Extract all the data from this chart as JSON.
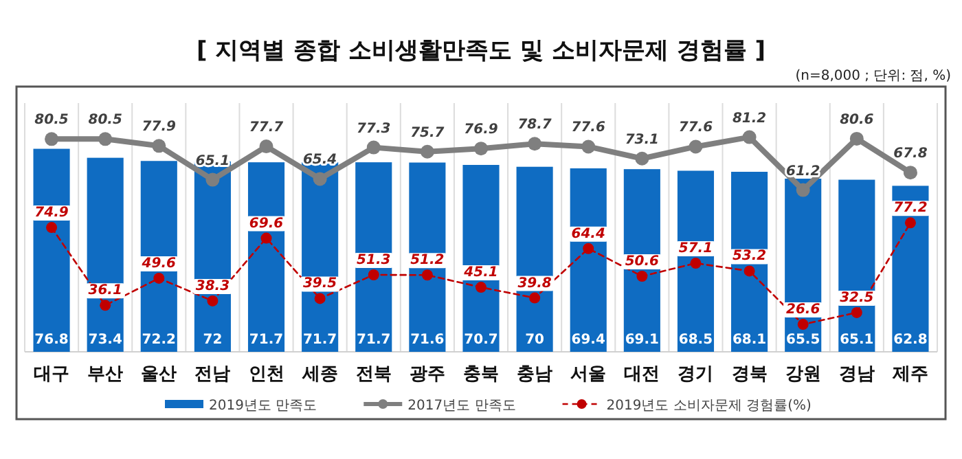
{
  "chart_data": {
    "type": "bar",
    "title": "[ 지역별 종합 소비생활만족도 및 소비자문제 경험률 ]",
    "subtitle": "(n=8,000 ; 단위: 점, %)",
    "categories": [
      "대구",
      "부산",
      "울산",
      "전남",
      "인천",
      "세종",
      "전북",
      "광주",
      "충북",
      "충남",
      "서울",
      "대전",
      "경기",
      "경북",
      "강원",
      "경남",
      "제주"
    ],
    "series": [
      {
        "name": "2019년도 만족도",
        "color": "#0f6cc2",
        "values": [
          76.8,
          73.4,
          72.2,
          72.0,
          71.7,
          71.7,
          71.7,
          71.6,
          70.7,
          70.0,
          69.4,
          69.1,
          68.5,
          68.1,
          65.5,
          65.1,
          62.8
        ]
      },
      {
        "name": "2017년도 만족도",
        "type": "line",
        "color": "#7f7f7f",
        "marker": "circle",
        "line_style": "solid",
        "values": [
          80.5,
          80.5,
          77.9,
          65.1,
          77.7,
          65.4,
          77.3,
          75.7,
          76.9,
          78.7,
          77.6,
          73.1,
          77.6,
          81.2,
          61.2,
          80.6,
          67.8
        ]
      },
      {
        "name": "2019년도 소비자문제 경험률(%)",
        "type": "line",
        "axis": "y2",
        "color": "#c00000",
        "marker": "circle",
        "line_style": "dashed",
        "values": [
          74.9,
          36.1,
          49.6,
          38.3,
          69.6,
          39.5,
          51.3,
          51.2,
          45.1,
          39.8,
          64.4,
          50.6,
          57.1,
          53.2,
          26.6,
          32.5,
          77.2
        ]
      }
    ],
    "data_labels": true,
    "grid": "x",
    "legend": "bottom"
  }
}
